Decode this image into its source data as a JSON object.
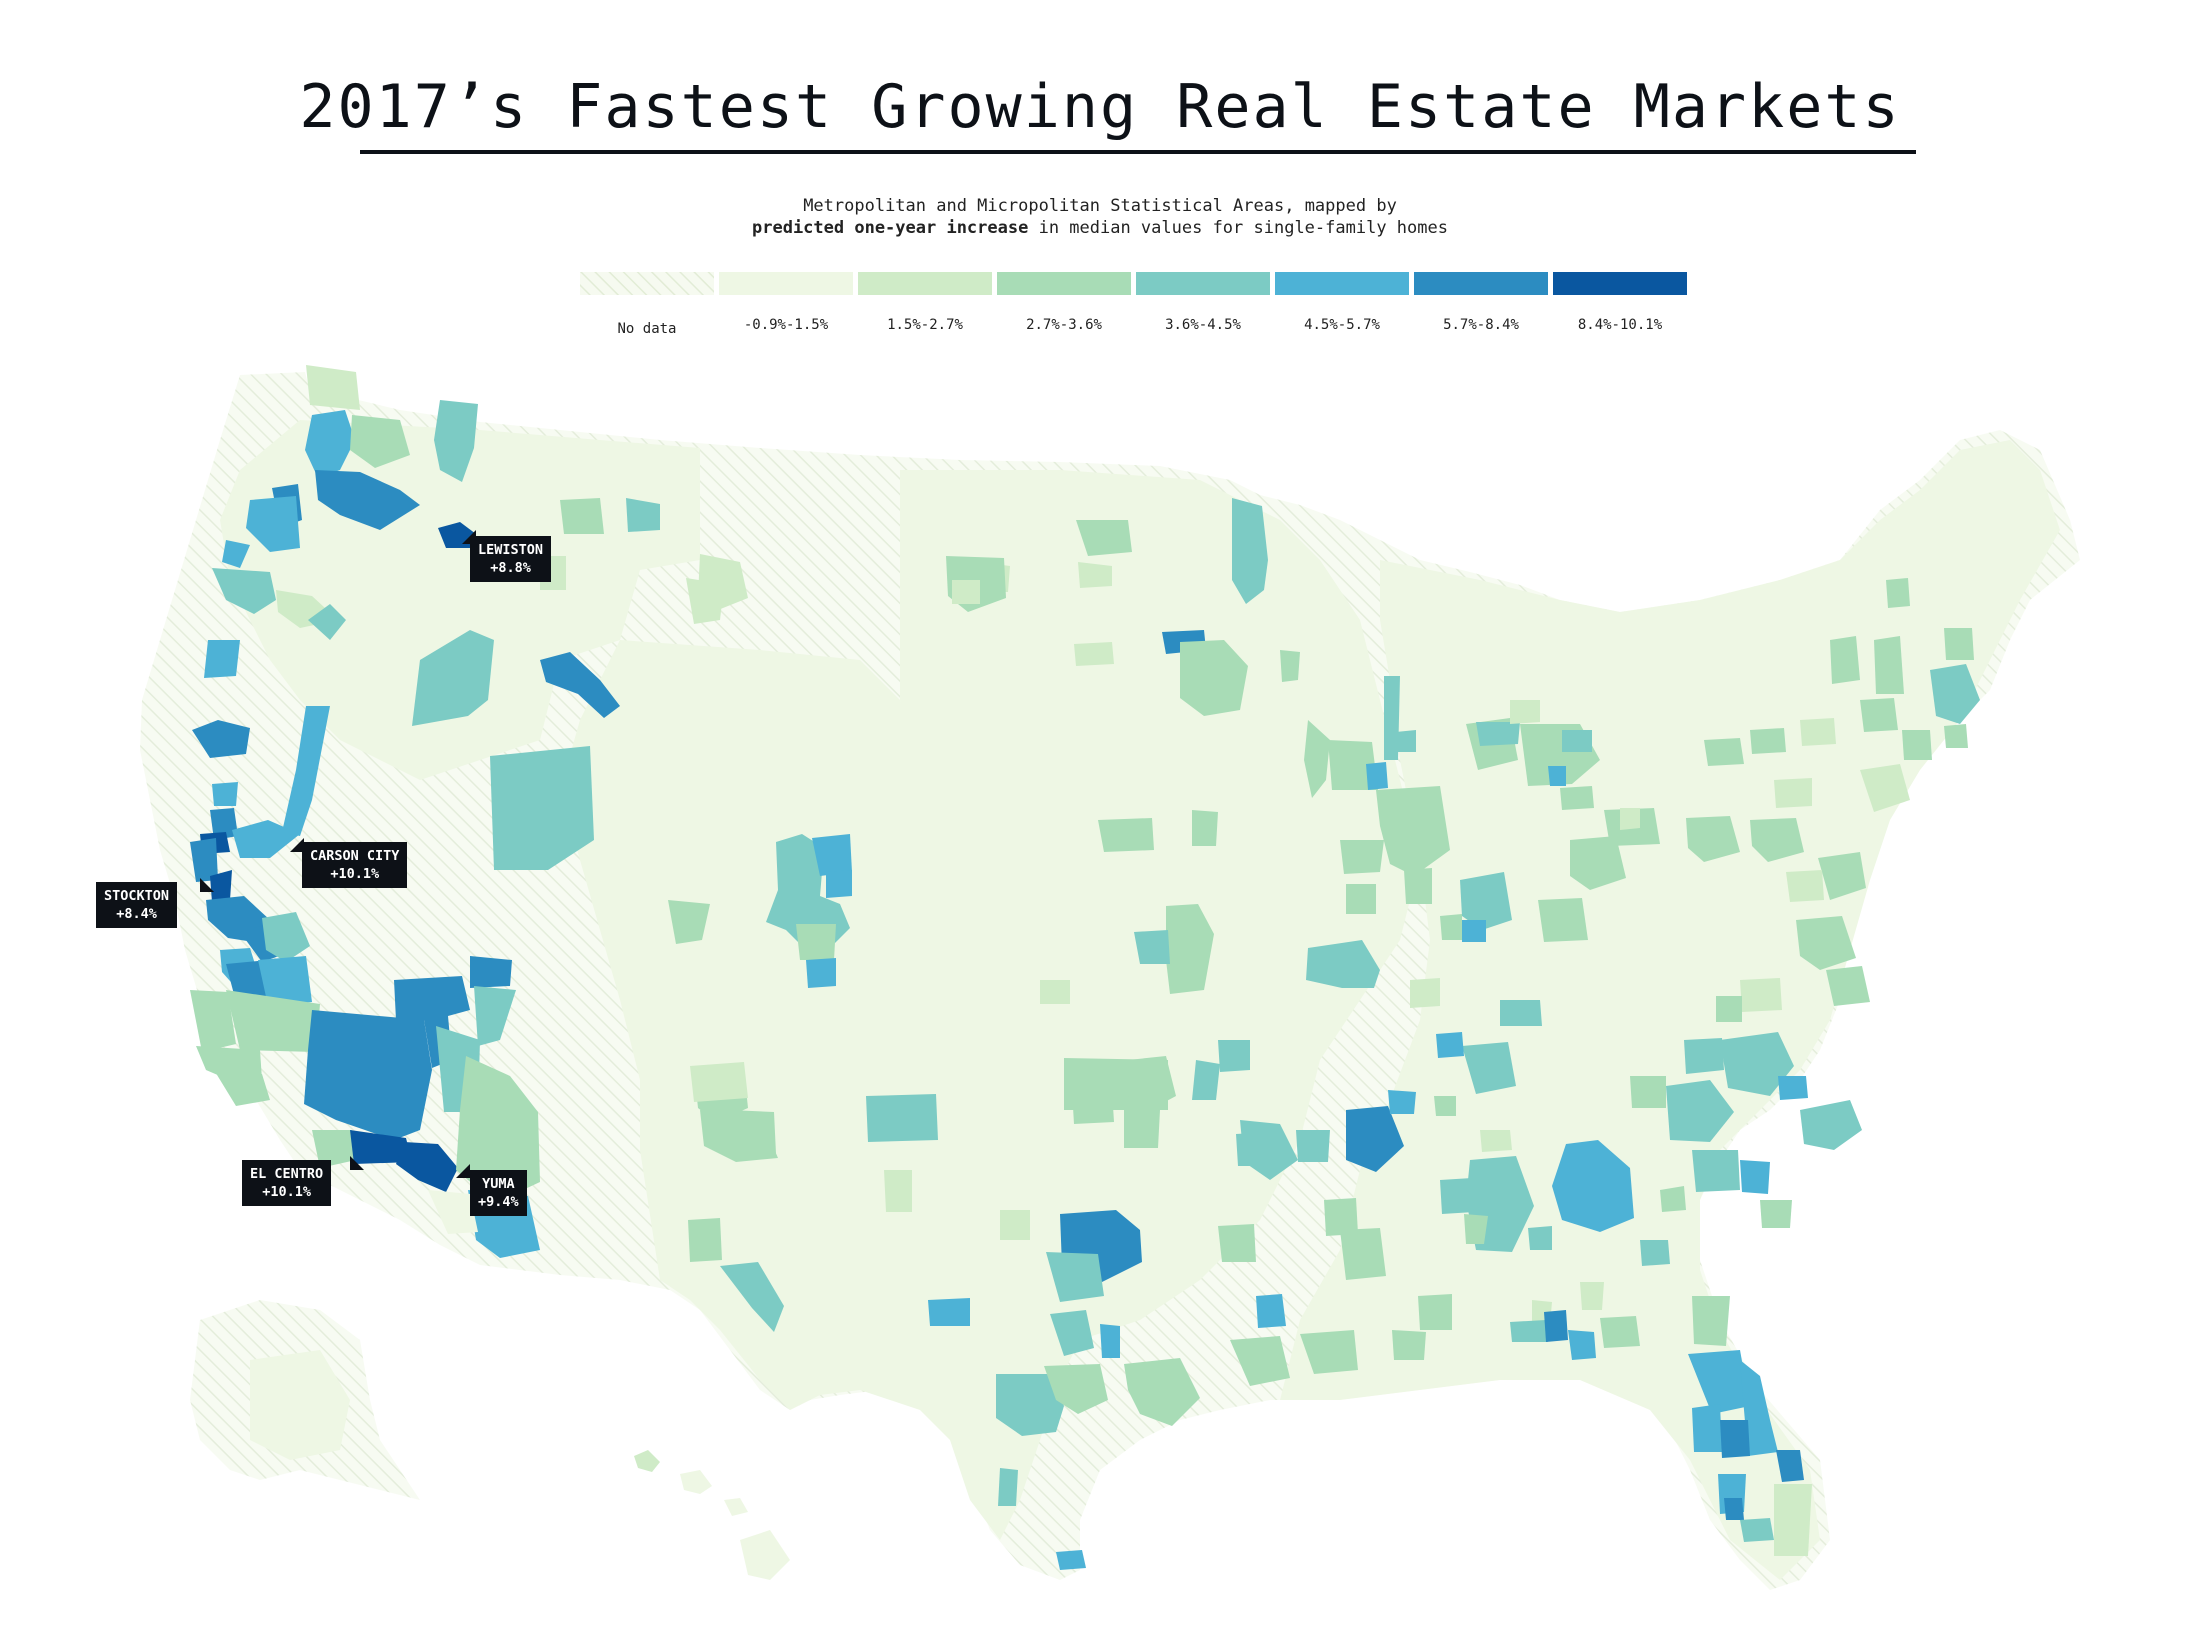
{
  "title": "2017’s Fastest Growing Real Estate Markets",
  "subtitle": {
    "line1": "Metropolitan and Micropolitan Statistical Areas, mapped by",
    "line2_bold": "predicted one-year increase",
    "line2_rest": " in median values for single-family homes"
  },
  "colors": {
    "no_data": "#f3f8ea",
    "bin1": "#eef7e4",
    "bin2": "#cfebc7",
    "bin3": "#a8dcb6",
    "bin4": "#7ccbc4",
    "bin5": "#4db2d6",
    "bin6": "#2c8cc1",
    "bin7": "#0a57a0",
    "base_land": "#f1f8e8",
    "hatch": "#e6efdc",
    "label_bg": "#0d1117"
  },
  "legend": [
    {
      "label": "No data",
      "color": "#f3f8ea",
      "hatched": true
    },
    {
      "label": "-0.9%-1.5%",
      "color": "#eef7e4"
    },
    {
      "label": "1.5%-2.7%",
      "color": "#cfebc7"
    },
    {
      "label": "2.7%-3.6%",
      "color": "#a8dcb6"
    },
    {
      "label": "3.6%-4.5%",
      "color": "#7ccbc4"
    },
    {
      "label": "4.5%-5.7%",
      "color": "#4db2d6"
    },
    {
      "label": "5.7%-8.4%",
      "color": "#2c8cc1"
    },
    {
      "label": "8.4%-10.1%",
      "color": "#0a57a0"
    }
  ],
  "callouts": [
    {
      "name": "LEWISTON",
      "value": "+8.8%"
    },
    {
      "name": "CARSON CITY",
      "value": "+10.1%"
    },
    {
      "name": "STOCKTON",
      "value": "+8.4%"
    },
    {
      "name": "EL CENTRO",
      "value": "+10.1%"
    },
    {
      "name": "YUMA",
      "value": "+9.4%"
    }
  ]
}
